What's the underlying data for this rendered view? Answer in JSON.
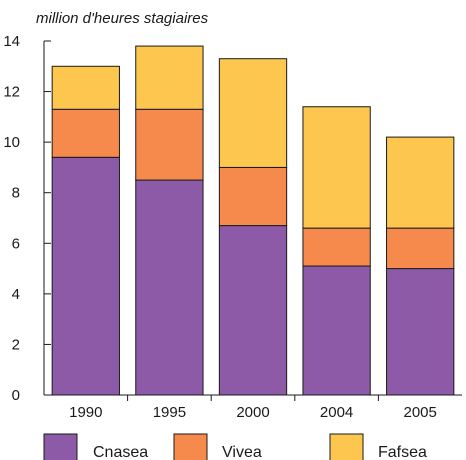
{
  "chart_data": {
    "type": "bar",
    "stacked": true,
    "ylabel": "million d'heures stagiaires",
    "categories": [
      "1990",
      "1995",
      "2000",
      "2004",
      "2005"
    ],
    "ylim": [
      0,
      14
    ],
    "yticks": [
      0,
      2,
      4,
      6,
      8,
      10,
      12,
      14
    ],
    "grid": false,
    "legend_position": "bottom",
    "series": [
      {
        "name": "Cnasea",
        "color": "#8c5aa6",
        "values": [
          9.4,
          8.5,
          6.7,
          5.1,
          5.0
        ]
      },
      {
        "name": "Vivea",
        "color": "#f58a4c",
        "values": [
          1.9,
          2.8,
          2.3,
          1.5,
          1.6
        ]
      },
      {
        "name": "Fafsea",
        "color": "#fcc64f",
        "values": [
          1.7,
          2.5,
          4.3,
          4.8,
          3.6
        ]
      }
    ]
  }
}
